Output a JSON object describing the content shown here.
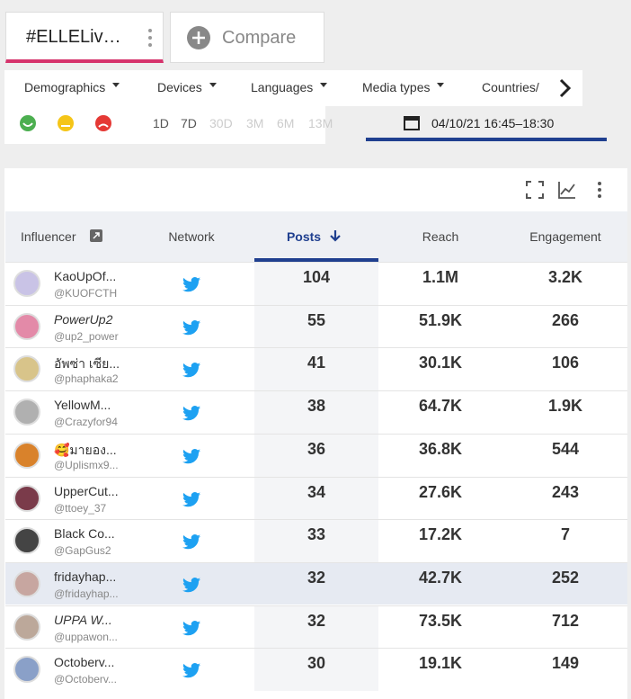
{
  "tabs": {
    "active": "#ELLELiv…",
    "compare": "Compare"
  },
  "filters": [
    "Demographics",
    "Devices",
    "Languages",
    "Media types",
    "Countries/"
  ],
  "periods": [
    "1D",
    "7D",
    "30D",
    "3M",
    "6M",
    "13M"
  ],
  "date_range": "04/10/21 16:45–18:30",
  "table": {
    "columns": [
      "Influencer",
      "Network",
      "Posts",
      "Reach",
      "Engagement"
    ],
    "rows": [
      [
        "KaoUpOf...",
        "@KUOFCTH",
        "104",
        "1.1M",
        "3.2K"
      ],
      [
        "PowerUp2",
        "@up2_power",
        "55",
        "51.9K",
        "266"
      ],
      [
        "อัพซ่า เซีย...",
        "@phaphaka2",
        "41",
        "30.1K",
        "106"
      ],
      [
        "YellowM...",
        "@Crazyfor94",
        "38",
        "64.7K",
        "1.9K"
      ],
      [
        "🥰มายอง...",
        "@Uplismx9...",
        "36",
        "36.8K",
        "544"
      ],
      [
        "UpperCut...",
        "@ttoey_37",
        "34",
        "27.6K",
        "243"
      ],
      [
        "Black Co...",
        "@GapGus2",
        "33",
        "17.2K",
        "7"
      ],
      [
        "fridayhap...",
        "@fridayhap...",
        "32",
        "42.7K",
        "252"
      ],
      [
        "UPPA W...",
        "@uppawon...",
        "32",
        "73.5K",
        "712"
      ],
      [
        "Octoberv...",
        "@Octoberv...",
        "30",
        "19.1K",
        "149"
      ]
    ]
  }
}
